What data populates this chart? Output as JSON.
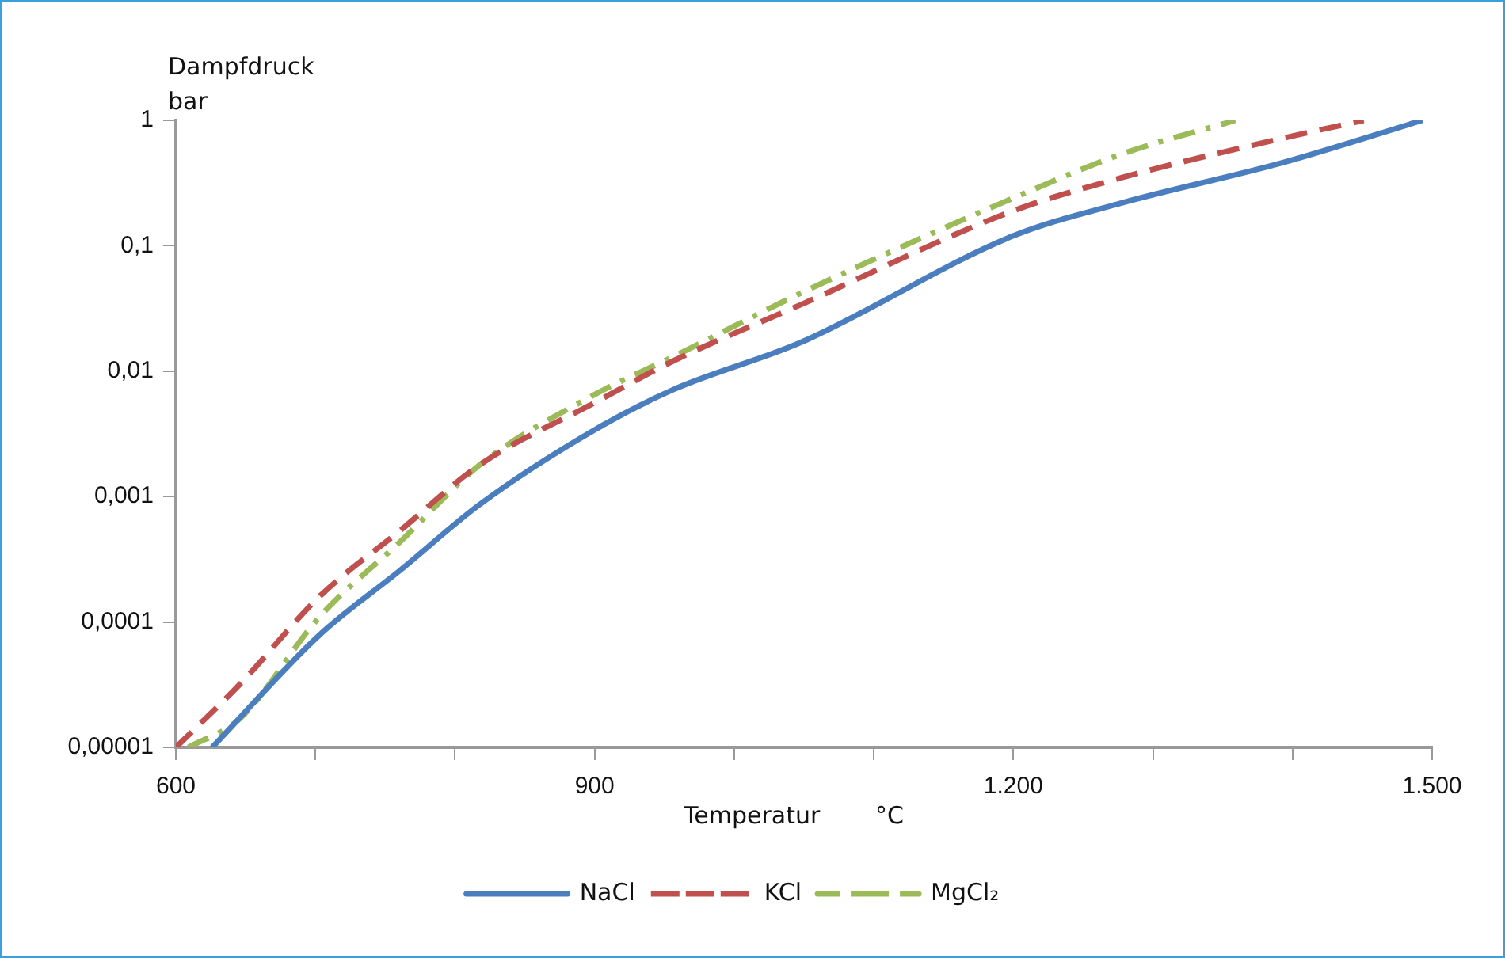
{
  "chart_data": {
    "type": "line",
    "xlabel": "Temperatur °C",
    "ylabel": "Dampfdruck bar",
    "log": "y",
    "grid": false,
    "legend": "bottom",
    "marker": "none",
    "xlim": [
      600,
      1500
    ],
    "xticks": [
      600,
      {
        "value": 700,
        "label": null
      },
      {
        "value": 800,
        "label": null
      },
      900,
      {
        "value": 1000,
        "label": null
      },
      {
        "value": 1100,
        "label": null
      },
      {
        "value": 1200,
        "label": "1.200"
      },
      {
        "value": 1300,
        "label": null
      },
      {
        "value": 1400,
        "label": null
      },
      {
        "value": 1500,
        "label": "1.500"
      }
    ],
    "ylim": [
      1e-05,
      1
    ],
    "yticks": [
      {
        "value": 1e-05,
        "label": "0,00001"
      },
      {
        "value": 0.0001,
        "label": "0,0001"
      },
      {
        "value": 0.001,
        "label": "0,001"
      },
      {
        "value": 0.01,
        "label": "0,01"
      },
      {
        "value": 0.1,
        "label": "0,1"
      },
      1
    ],
    "series": [
      {
        "name": "NaCl",
        "color": "#4a7ebf",
        "line_style": "solid",
        "x": [
          626,
          703,
          761,
          818,
          900,
          956,
          1048,
          1200,
          1278,
          1393,
          1493
        ],
        "values": [
          1e-05,
          7.9e-05,
          0.00026,
          0.00087,
          0.0034,
          0.0071,
          0.017,
          0.12,
          0.22,
          0.46,
          1
        ]
      },
      {
        "name": "KCl",
        "color": "#c0504d",
        "line_style": "dashed",
        "x": [
          600,
          646,
          703,
          761,
          818,
          900,
          956,
          1048,
          1200,
          1278,
          1393,
          1451
        ],
        "values": [
          1e-05,
          3.2e-05,
          0.00016,
          0.00054,
          0.0018,
          0.0056,
          0.012,
          0.034,
          0.19,
          0.35,
          0.72,
          1
        ]
      },
      {
        "name": "MgCl₂",
        "color": "#9bbb59",
        "line_style": "dotted",
        "x": [
          609,
          646,
          703,
          761,
          818,
          900,
          956,
          1048,
          1200,
          1278,
          1359
        ],
        "values": [
          1e-05,
          1.7e-05,
          0.00011,
          0.00044,
          0.0018,
          0.0065,
          0.013,
          0.042,
          0.24,
          0.54,
          1
        ]
      }
    ]
  }
}
